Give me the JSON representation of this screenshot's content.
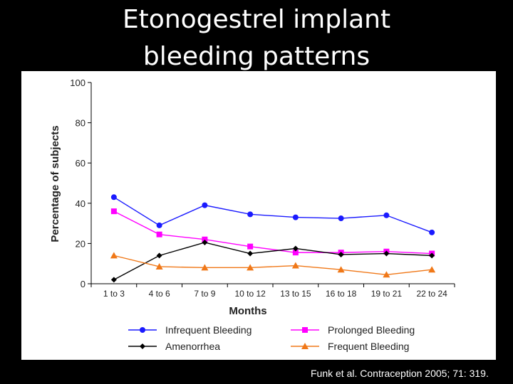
{
  "slide": {
    "title_line1": "Etonogestrel implant",
    "title_line2": "bleeding patterns",
    "citation": "Funk et al. Contraception 2005; 71: 319."
  },
  "chart_data": {
    "type": "line",
    "title": "",
    "xlabel": "Months",
    "ylabel": "Percentage of subjects",
    "categories": [
      "1 to 3",
      "4 to 6",
      "7 to 9",
      "10 to 12",
      "13 to 15",
      "16 to 18",
      "19 to 21",
      "22 to 24"
    ],
    "ylim": [
      0,
      100
    ],
    "yticks": [
      0,
      20,
      40,
      60,
      80,
      100
    ],
    "grid": false,
    "legend_position": "bottom",
    "series": [
      {
        "name": "Infrequent Bleeding",
        "color": "#1a1aff",
        "marker": "circle",
        "values": [
          43,
          29,
          39,
          34.5,
          33,
          32.5,
          34,
          25.5
        ]
      },
      {
        "name": "Prolonged Bleeding",
        "color": "#ff00ff",
        "marker": "square",
        "values": [
          36,
          24.5,
          22,
          18.5,
          15.5,
          15.5,
          16,
          15
        ]
      },
      {
        "name": "Amenorrhea",
        "color": "#000000",
        "marker": "diamond",
        "values": [
          2,
          14,
          20.5,
          15,
          17.5,
          14.5,
          15,
          14
        ]
      },
      {
        "name": "Frequent Bleeding",
        "color": "#f07818",
        "marker": "triangle",
        "values": [
          14,
          8.5,
          8,
          8,
          9,
          7,
          4.5,
          7
        ]
      }
    ]
  }
}
